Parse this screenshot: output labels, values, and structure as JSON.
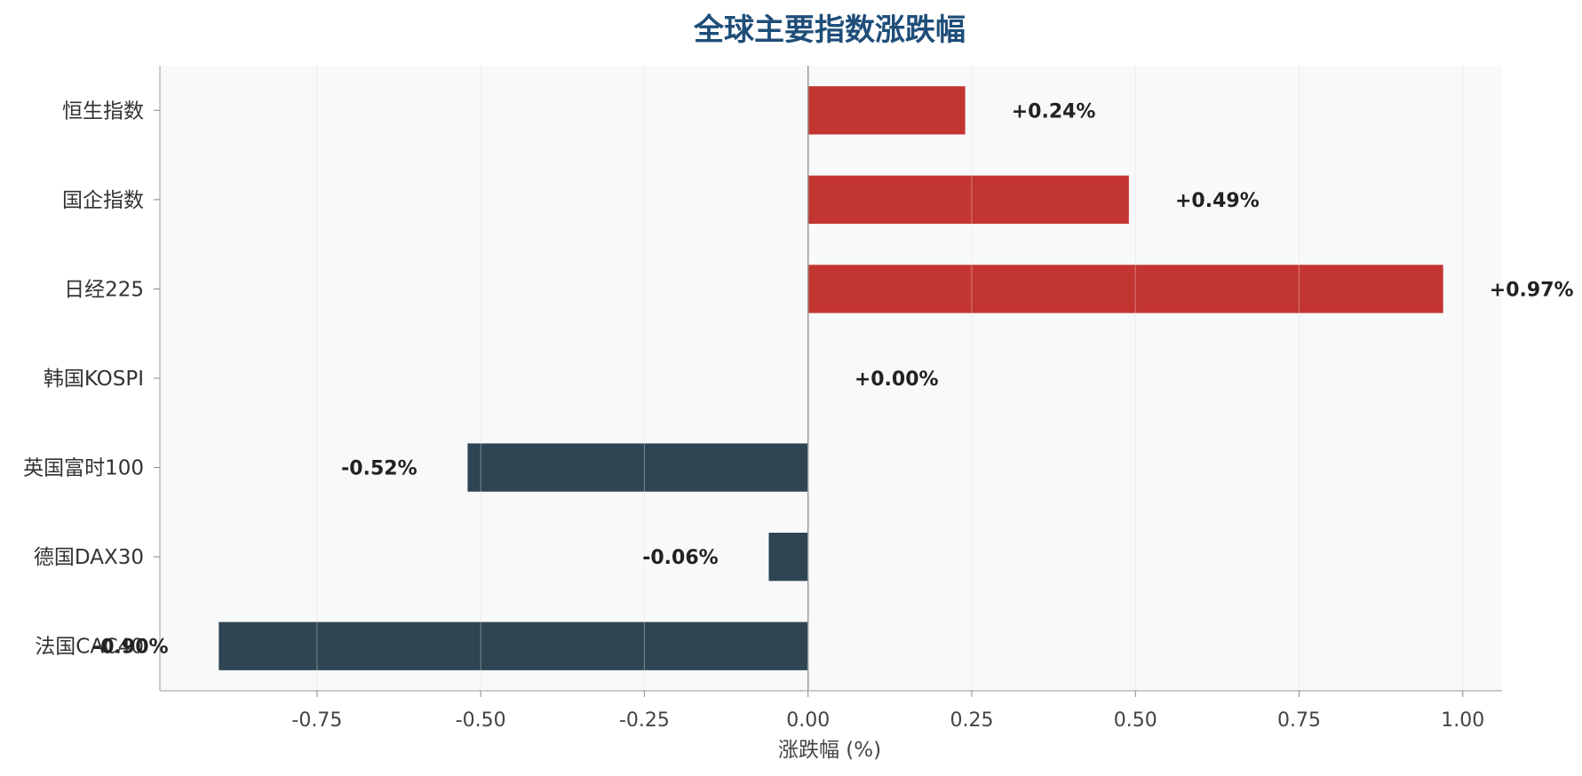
{
  "chart_data": {
    "type": "bar",
    "orientation": "horizontal",
    "title": "全球主要指数涨跌幅",
    "xlabel": "涨跌幅 (%)",
    "ylabel": "",
    "categories": [
      "恒生指数",
      "国企指数",
      "日经225",
      "韩国KOSPI",
      "英国富时100",
      "德国DAX30",
      "法国CAC40"
    ],
    "values": [
      0.24,
      0.49,
      0.97,
      0.0,
      -0.52,
      -0.06,
      -0.9
    ],
    "value_labels": [
      "+0.24%",
      "+0.49%",
      "+0.97%",
      "+0.00%",
      "-0.52%",
      "-0.06%",
      "-0.90%"
    ],
    "xlim": [
      -0.99,
      1.06
    ],
    "xticks": [
      -0.75,
      -0.5,
      -0.25,
      0.0,
      0.25,
      0.5,
      0.75,
      1.0
    ],
    "xtick_labels": [
      "-0.75",
      "-0.50",
      "-0.25",
      "0.00",
      "0.25",
      "0.50",
      "0.75",
      "1.00"
    ],
    "grid": "vertical",
    "colors": {
      "positive": "#c23531",
      "negative": "#2f4554",
      "title": "#1f4e79",
      "plot_background": "#f8f9fb",
      "grid": "#e3e3e3",
      "zero_line": "#999999"
    }
  }
}
